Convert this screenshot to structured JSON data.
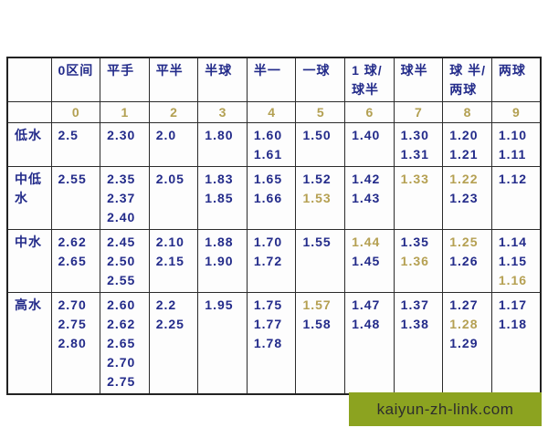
{
  "chart_data": {
    "type": "table",
    "columns": [
      {
        "lines": [
          "0区间"
        ],
        "index": "0"
      },
      {
        "lines": [
          "平手"
        ],
        "index": "1"
      },
      {
        "lines": [
          "平半"
        ],
        "index": "2"
      },
      {
        "lines": [
          "半球"
        ],
        "index": "3"
      },
      {
        "lines": [
          "半一"
        ],
        "index": "4"
      },
      {
        "lines": [
          "一球"
        ],
        "index": "5"
      },
      {
        "lines": [
          "1 球/",
          "球半"
        ],
        "index": "6"
      },
      {
        "lines": [
          "球半"
        ],
        "index": "7"
      },
      {
        "lines": [
          "球 半/",
          "两球"
        ],
        "index": "8"
      },
      {
        "lines": [
          "两球"
        ],
        "index": "9"
      }
    ],
    "rows": [
      {
        "label": "低水",
        "cells": [
          [
            "2.5"
          ],
          [
            "2.30"
          ],
          [
            "2.0"
          ],
          [
            "1.80"
          ],
          [
            "1.60",
            "1.61"
          ],
          [
            "1.50"
          ],
          [
            "1.40"
          ],
          [
            "1.30",
            "1.31"
          ],
          [
            "1.20",
            "1.21"
          ],
          [
            "1.10",
            "1.11"
          ]
        ]
      },
      {
        "label": "中低水",
        "cells": [
          [
            "2.55"
          ],
          [
            "2.35",
            "2.37",
            "2.40"
          ],
          [
            "2.05"
          ],
          [
            "1.83",
            "1.85"
          ],
          [
            "1.65",
            "1.66"
          ],
          [
            "1.52",
            {
              "t": "1.53",
              "gold": true
            }
          ],
          [
            "1.42",
            "1.43"
          ],
          [
            {
              "t": "1.33",
              "gold": true
            }
          ],
          [
            {
              "t": "1.22",
              "gold": true
            },
            "1.23"
          ],
          [
            "1.12"
          ]
        ]
      },
      {
        "label": "中水",
        "cells": [
          [
            "2.62",
            "2.65"
          ],
          [
            "2.45",
            "2.50",
            "2.55"
          ],
          [
            "2.10",
            "2.15"
          ],
          [
            "1.88",
            "1.90"
          ],
          [
            "1.70",
            "1.72"
          ],
          [
            "1.55"
          ],
          [
            {
              "t": "1.44",
              "gold": true
            },
            "1.45"
          ],
          [
            "1.35",
            {
              "t": "1.36",
              "gold": true
            }
          ],
          [
            {
              "t": "1.25",
              "gold": true
            },
            "1.26"
          ],
          [
            "1.14",
            "1.15",
            {
              "t": "1.16",
              "gold": true
            }
          ]
        ]
      },
      {
        "label": "高水",
        "cells": [
          [
            "2.70",
            "2.75",
            "2.80"
          ],
          [
            "2.60",
            "2.62",
            "2.65",
            "2.70",
            "2.75"
          ],
          [
            "2.2",
            "2.25"
          ],
          [
            "1.95"
          ],
          [
            "1.75",
            "1.77",
            "1.78"
          ],
          [
            {
              "t": "1.57",
              "gold": true
            },
            "1.58"
          ],
          [
            "1.47",
            "1.48"
          ],
          [
            "1.37",
            "1.38"
          ],
          [
            "1.27",
            {
              "t": "1.28",
              "gold": true
            },
            "1.29"
          ],
          [
            "1.17",
            "1.18"
          ]
        ]
      }
    ],
    "row_min_heights": [
      45,
      63,
      65,
      110
    ],
    "legend_note": "gold-colored values are highlighted odds",
    "colors": {
      "navy_text": "#232b8a",
      "gold_text": "#b5a052",
      "border": "#2b2b2b",
      "watermark_bg": "#8ca320"
    }
  },
  "watermark": {
    "text": "kaiyun-zh-link.com"
  }
}
